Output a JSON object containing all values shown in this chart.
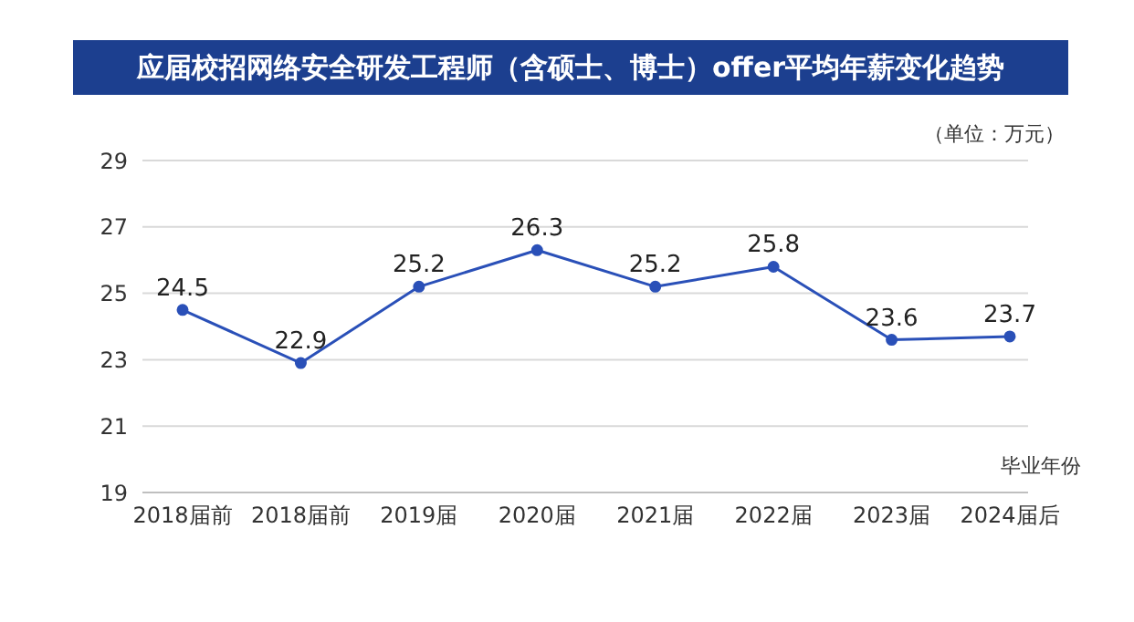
{
  "chart_data": {
    "type": "line",
    "title": "应届校招网络安全研发工程师（含硕士、博士）offer平均年薪变化趋势",
    "xlabel": "毕业年份",
    "annotations": [
      "（单位：万元）"
    ],
    "categories": [
      "2018届前",
      "2018届前",
      "2019届",
      "2020届",
      "2021届",
      "2022届",
      "2023届",
      "2024届后"
    ],
    "series": [
      {
        "color": "#2a50b8",
        "values": [
          24.5,
          22.9,
          25.2,
          26.3,
          25.2,
          25.8,
          23.6,
          23.7
        ]
      }
    ],
    "ylim": [
      19,
      29
    ],
    "yticks": [
      19,
      21,
      23,
      25,
      27,
      29
    ],
    "grid": "y",
    "marker": "circle",
    "line_style": "solid",
    "data_labels": true,
    "legend": false
  }
}
